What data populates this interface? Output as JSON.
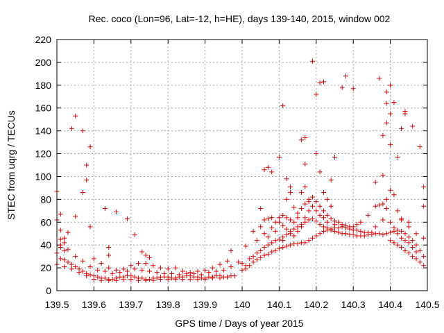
{
  "chart_data": {
    "type": "scatter",
    "title": "Rec. coco (Lon=96, Lat=-12, h=HE), days 139-140, 2015, window 002",
    "xlabel": "GPS time / Days of year 2015",
    "ylabel": "STEC from uqrg / TECUs",
    "xlim": [
      139.5,
      140.5
    ],
    "ylim": [
      0,
      220
    ],
    "xticks": [
      "139.5",
      "139.6",
      "139.7",
      "139.8",
      "139.9",
      "140",
      "140.1",
      "140.2",
      "140.3",
      "140.4",
      "140.5"
    ],
    "yticks": [
      "0",
      "20",
      "40",
      "60",
      "80",
      "100",
      "120",
      "140",
      "160",
      "180",
      "200",
      "220"
    ],
    "grid": true,
    "marker": "plus",
    "color": "#e00000",
    "points": [
      [
        139.5,
        87
      ],
      [
        139.5,
        62
      ],
      [
        139.51,
        67
      ],
      [
        139.51,
        53
      ],
      [
        139.51,
        45
      ],
      [
        139.51,
        38
      ],
      [
        139.52,
        46
      ],
      [
        139.52,
        42
      ],
      [
        139.52,
        35
      ],
      [
        139.53,
        51
      ],
      [
        139.54,
        142
      ],
      [
        139.55,
        153
      ],
      [
        139.55,
        65
      ],
      [
        139.57,
        140
      ],
      [
        139.57,
        86
      ],
      [
        139.58,
        110
      ],
      [
        139.58,
        97
      ],
      [
        139.59,
        126
      ],
      [
        139.59,
        56
      ],
      [
        139.63,
        72
      ],
      [
        139.64,
        38
      ],
      [
        139.64,
        31
      ],
      [
        139.66,
        69
      ],
      [
        139.69,
        63
      ],
      [
        139.71,
        49
      ],
      [
        139.73,
        34
      ],
      [
        139.74,
        31
      ],
      [
        139.75,
        29
      ],
      [
        139.97,
        35
      ],
      [
        140.01,
        39
      ],
      [
        140.03,
        52
      ],
      [
        140.05,
        72
      ],
      [
        140.06,
        106
      ],
      [
        140.07,
        108
      ],
      [
        140.08,
        104
      ],
      [
        140.1,
        117
      ],
      [
        140.11,
        162
      ],
      [
        140.12,
        98
      ],
      [
        140.13,
        91
      ],
      [
        140.16,
        132
      ],
      [
        140.17,
        134
      ],
      [
        140.17,
        111
      ],
      [
        140.19,
        201
      ],
      [
        140.2,
        172
      ],
      [
        140.2,
        120
      ],
      [
        140.21,
        182
      ],
      [
        140.21,
        104
      ],
      [
        140.22,
        183
      ],
      [
        140.24,
        97
      ],
      [
        140.25,
        117
      ],
      [
        140.27,
        178
      ],
      [
        140.28,
        188
      ],
      [
        140.3,
        177
      ],
      [
        140.36,
        95
      ],
      [
        140.37,
        186
      ],
      [
        140.38,
        136
      ],
      [
        140.38,
        101
      ],
      [
        140.39,
        174
      ],
      [
        140.39,
        164
      ],
      [
        140.39,
        147
      ],
      [
        140.4,
        180
      ],
      [
        140.4,
        155
      ],
      [
        140.4,
        128
      ],
      [
        140.41,
        165
      ],
      [
        140.42,
        117
      ],
      [
        140.43,
        142
      ],
      [
        140.44,
        157
      ],
      [
        140.44,
        155
      ],
      [
        140.46,
        144
      ],
      [
        140.48,
        126
      ],
      [
        140.49,
        91
      ],
      [
        140.49,
        74
      ],
      [
        139.5,
        33
      ],
      [
        139.51,
        28
      ],
      [
        139.52,
        27
      ],
      [
        139.53,
        25
      ],
      [
        139.54,
        23
      ],
      [
        139.55,
        21
      ],
      [
        139.56,
        19
      ],
      [
        139.57,
        17
      ],
      [
        139.58,
        15
      ],
      [
        139.59,
        14
      ],
      [
        139.6,
        13
      ],
      [
        139.61,
        12
      ],
      [
        139.62,
        11
      ],
      [
        139.63,
        11
      ],
      [
        139.64,
        10
      ],
      [
        139.65,
        10
      ],
      [
        139.66,
        11
      ],
      [
        139.67,
        12
      ],
      [
        139.68,
        12
      ],
      [
        139.69,
        13
      ],
      [
        139.7,
        13
      ],
      [
        139.71,
        12
      ],
      [
        139.72,
        11
      ],
      [
        139.73,
        11
      ],
      [
        139.74,
        10
      ],
      [
        139.75,
        10
      ],
      [
        139.76,
        11
      ],
      [
        139.77,
        11
      ],
      [
        139.78,
        12
      ],
      [
        139.79,
        12
      ],
      [
        139.8,
        12
      ],
      [
        139.81,
        11
      ],
      [
        139.82,
        11
      ],
      [
        139.83,
        12
      ],
      [
        139.84,
        12
      ],
      [
        139.85,
        13
      ],
      [
        139.86,
        13
      ],
      [
        139.87,
        12
      ],
      [
        139.88,
        12
      ],
      [
        139.89,
        11
      ],
      [
        139.9,
        11
      ],
      [
        139.91,
        12
      ],
      [
        139.92,
        12
      ],
      [
        139.93,
        13
      ],
      [
        139.94,
        13
      ],
      [
        139.95,
        12
      ],
      [
        139.96,
        12
      ],
      [
        139.97,
        13
      ],
      [
        139.98,
        13
      ],
      [
        139.5,
        23
      ],
      [
        139.52,
        21
      ],
      [
        139.54,
        19
      ],
      [
        139.56,
        16
      ],
      [
        139.58,
        13
      ],
      [
        139.6,
        10
      ],
      [
        139.62,
        9
      ],
      [
        139.64,
        9
      ],
      [
        139.66,
        9
      ],
      [
        139.68,
        10
      ],
      [
        139.7,
        10
      ],
      [
        139.72,
        9
      ],
      [
        139.74,
        9
      ],
      [
        139.76,
        9
      ],
      [
        139.78,
        10
      ],
      [
        139.8,
        10
      ],
      [
        139.82,
        10
      ],
      [
        139.84,
        10
      ],
      [
        139.86,
        10
      ],
      [
        139.88,
        10
      ],
      [
        139.9,
        10
      ],
      [
        139.92,
        11
      ],
      [
        139.94,
        11
      ],
      [
        139.96,
        12
      ],
      [
        139.51,
        40
      ],
      [
        139.53,
        36
      ],
      [
        139.55,
        30
      ],
      [
        139.57,
        26
      ],
      [
        139.59,
        21
      ],
      [
        139.61,
        18
      ],
      [
        139.63,
        17
      ],
      [
        139.65,
        15
      ],
      [
        139.67,
        16
      ],
      [
        139.69,
        17
      ],
      [
        139.71,
        19
      ],
      [
        139.73,
        18
      ],
      [
        139.75,
        17
      ],
      [
        139.77,
        16
      ],
      [
        139.79,
        15
      ],
      [
        139.81,
        15
      ],
      [
        139.83,
        14
      ],
      [
        139.85,
        15
      ],
      [
        139.87,
        15
      ],
      [
        139.89,
        14
      ],
      [
        139.91,
        16
      ],
      [
        139.93,
        17
      ],
      [
        139.95,
        18
      ],
      [
        139.97,
        21
      ],
      [
        139.99,
        25
      ],
      [
        139.6,
        28
      ],
      [
        139.62,
        24
      ],
      [
        139.64,
        20
      ],
      [
        139.66,
        18
      ],
      [
        139.68,
        19
      ],
      [
        139.7,
        22
      ],
      [
        139.72,
        24
      ],
      [
        139.74,
        24
      ],
      [
        139.76,
        22
      ],
      [
        139.78,
        20
      ],
      [
        139.8,
        19
      ],
      [
        139.82,
        20
      ],
      [
        139.84,
        17
      ],
      [
        139.86,
        16
      ],
      [
        139.88,
        17
      ],
      [
        139.9,
        18
      ],
      [
        139.92,
        20
      ],
      [
        139.94,
        23
      ],
      [
        139.96,
        26
      ],
      [
        140.0,
        24
      ],
      [
        140.01,
        22
      ],
      [
        140.02,
        28
      ],
      [
        140.03,
        30
      ],
      [
        140.04,
        33
      ],
      [
        140.05,
        35
      ],
      [
        140.06,
        38
      ],
      [
        140.07,
        40
      ],
      [
        140.08,
        42
      ],
      [
        140.09,
        44
      ],
      [
        140.1,
        45
      ],
      [
        140.11,
        47
      ],
      [
        140.12,
        49
      ],
      [
        140.13,
        52
      ],
      [
        140.14,
        54
      ],
      [
        140.15,
        56
      ],
      [
        140.16,
        58
      ],
      [
        140.17,
        60
      ],
      [
        140.18,
        62
      ],
      [
        140.19,
        63
      ],
      [
        140.2,
        61
      ],
      [
        140.21,
        58
      ],
      [
        140.22,
        56
      ],
      [
        140.23,
        55
      ],
      [
        140.24,
        53
      ],
      [
        140.25,
        52
      ],
      [
        140.26,
        51
      ],
      [
        140.27,
        50
      ],
      [
        140.28,
        50
      ],
      [
        140.29,
        49
      ],
      [
        140.3,
        49
      ],
      [
        140.31,
        48
      ],
      [
        140.32,
        48
      ],
      [
        140.33,
        48
      ],
      [
        140.34,
        49
      ],
      [
        140.35,
        49
      ],
      [
        140.36,
        50
      ],
      [
        140.37,
        50
      ],
      [
        140.38,
        49
      ],
      [
        140.39,
        50
      ],
      [
        140.4,
        51
      ],
      [
        140.41,
        52
      ],
      [
        140.42,
        53
      ],
      [
        140.43,
        52
      ],
      [
        140.44,
        50
      ],
      [
        140.45,
        47
      ],
      [
        140.46,
        44
      ],
      [
        140.47,
        40
      ],
      [
        140.48,
        35
      ],
      [
        140.49,
        30
      ],
      [
        140.0,
        18
      ],
      [
        140.01,
        19
      ],
      [
        140.02,
        22
      ],
      [
        140.03,
        25
      ],
      [
        140.04,
        27
      ],
      [
        140.05,
        29
      ],
      [
        140.06,
        31
      ],
      [
        140.07,
        32
      ],
      [
        140.08,
        34
      ],
      [
        140.09,
        35
      ],
      [
        140.1,
        37
      ],
      [
        140.11,
        38
      ],
      [
        140.12,
        39
      ],
      [
        140.13,
        40
      ],
      [
        140.14,
        41
      ],
      [
        140.15,
        41
      ],
      [
        140.16,
        42
      ],
      [
        140.17,
        42
      ],
      [
        140.18,
        44
      ],
      [
        140.19,
        46
      ],
      [
        140.2,
        48
      ],
      [
        140.21,
        50
      ],
      [
        140.22,
        52
      ],
      [
        140.23,
        53
      ],
      [
        140.24,
        54
      ],
      [
        140.25,
        55
      ],
      [
        140.26,
        55
      ],
      [
        140.27,
        56
      ],
      [
        140.28,
        55
      ],
      [
        140.29,
        54
      ],
      [
        140.3,
        53
      ],
      [
        140.31,
        53
      ],
      [
        140.32,
        52
      ],
      [
        140.33,
        51
      ],
      [
        140.34,
        51
      ],
      [
        140.35,
        51
      ],
      [
        140.4,
        44
      ],
      [
        140.41,
        42
      ],
      [
        140.42,
        40
      ],
      [
        140.43,
        38
      ],
      [
        140.44,
        35
      ],
      [
        140.45,
        33
      ],
      [
        140.46,
        30
      ],
      [
        140.47,
        28
      ],
      [
        140.48,
        25
      ],
      [
        140.49,
        22
      ],
      [
        140.04,
        44
      ],
      [
        140.06,
        50
      ],
      [
        140.08,
        55
      ],
      [
        140.09,
        60
      ],
      [
        140.1,
        64
      ],
      [
        140.11,
        66
      ],
      [
        140.12,
        64
      ],
      [
        140.13,
        62
      ],
      [
        140.14,
        60
      ],
      [
        140.15,
        64
      ],
      [
        140.16,
        72
      ],
      [
        140.17,
        76
      ],
      [
        140.18,
        80
      ],
      [
        140.19,
        82
      ],
      [
        140.2,
        78
      ],
      [
        140.21,
        74
      ],
      [
        140.22,
        70
      ],
      [
        140.23,
        66
      ],
      [
        140.24,
        63
      ],
      [
        140.25,
        61
      ],
      [
        140.26,
        60
      ],
      [
        140.27,
        58
      ],
      [
        140.28,
        57
      ],
      [
        140.29,
        56
      ],
      [
        140.3,
        56
      ],
      [
        140.31,
        58
      ],
      [
        140.32,
        60
      ],
      [
        140.34,
        66
      ],
      [
        140.36,
        74
      ],
      [
        140.37,
        75
      ],
      [
        140.38,
        76
      ],
      [
        140.39,
        72
      ],
      [
        140.4,
        60
      ],
      [
        140.41,
        55
      ],
      [
        140.42,
        50
      ],
      [
        140.43,
        46
      ],
      [
        140.44,
        44
      ],
      [
        140.45,
        42
      ],
      [
        140.46,
        38
      ],
      [
        140.47,
        34
      ],
      [
        140.06,
        62
      ],
      [
        140.07,
        63
      ],
      [
        140.08,
        64
      ],
      [
        140.1,
        60
      ],
      [
        140.11,
        57
      ],
      [
        140.12,
        54
      ],
      [
        140.13,
        50
      ],
      [
        140.14,
        48
      ],
      [
        140.15,
        52
      ],
      [
        140.16,
        56
      ],
      [
        140.17,
        64
      ],
      [
        140.18,
        70
      ],
      [
        140.19,
        74
      ],
      [
        140.2,
        70
      ],
      [
        140.21,
        66
      ],
      [
        140.22,
        64
      ],
      [
        140.23,
        60
      ],
      [
        140.25,
        58
      ],
      [
        140.4,
        88
      ],
      [
        140.41,
        84
      ],
      [
        140.42,
        70
      ],
      [
        140.43,
        62
      ],
      [
        140.45,
        56
      ],
      [
        140.47,
        50
      ],
      [
        140.49,
        46
      ],
      [
        140.05,
        56
      ],
      [
        140.07,
        47
      ],
      [
        140.09,
        52
      ],
      [
        140.11,
        44
      ],
      [
        140.12,
        80
      ],
      [
        140.13,
        86
      ],
      [
        140.14,
        73
      ],
      [
        140.15,
        68
      ],
      [
        140.16,
        86
      ],
      [
        140.17,
        91
      ],
      [
        140.18,
        78
      ],
      [
        140.22,
        86
      ],
      [
        140.23,
        80
      ],
      [
        140.24,
        74
      ],
      [
        140.39,
        80
      ],
      [
        140.36,
        56
      ],
      [
        140.38,
        62
      ],
      [
        140.43,
        63
      ],
      [
        140.45,
        60
      ]
    ]
  }
}
